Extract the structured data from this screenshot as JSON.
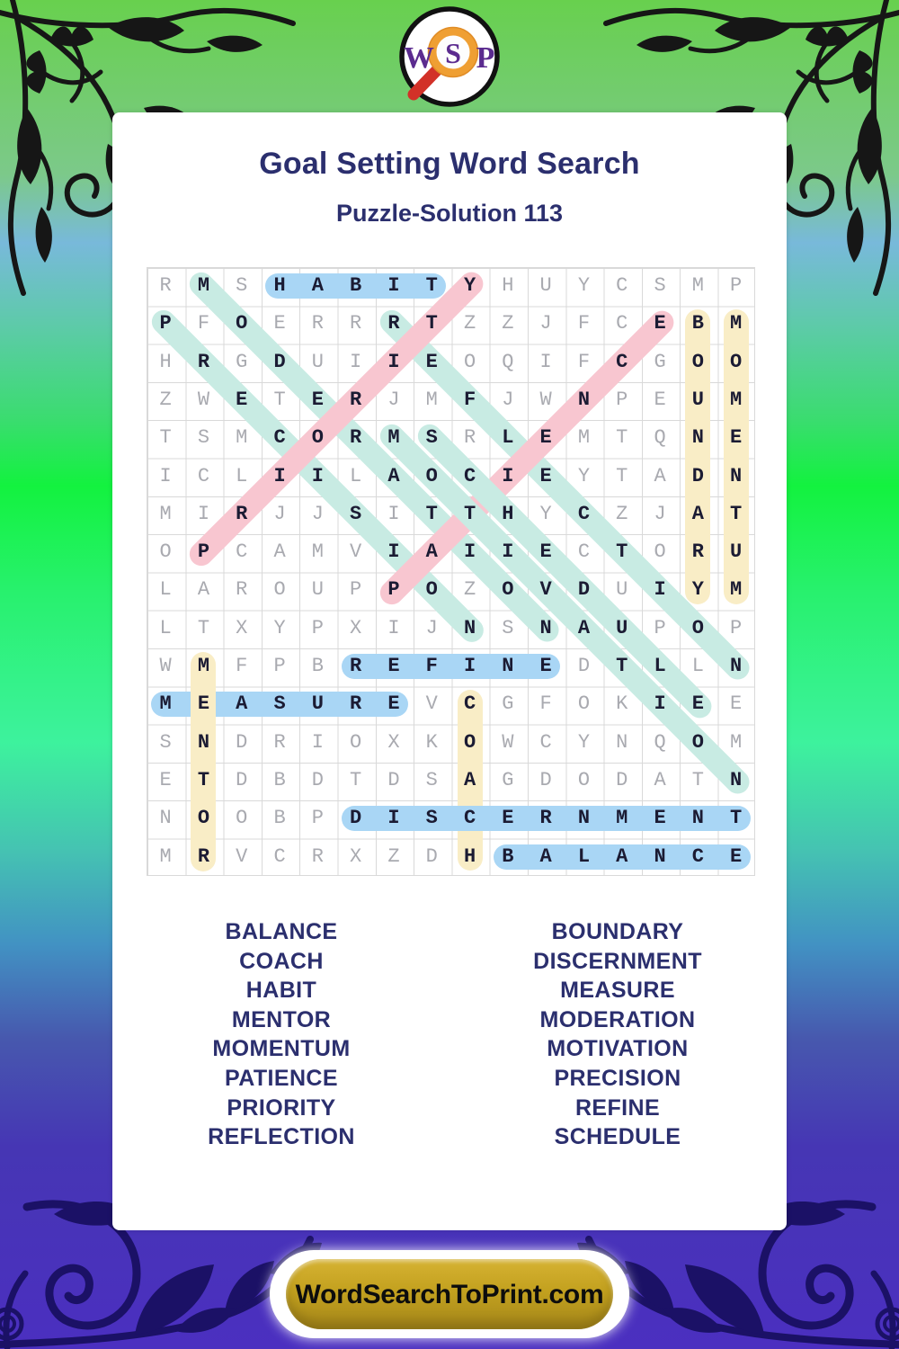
{
  "logo": {
    "letter_w": "W",
    "letter_s": "S",
    "letter_p": "P"
  },
  "header": {
    "title": "Goal Setting Word Search",
    "subtitle": "Puzzle-Solution 113"
  },
  "grid": {
    "size": 16,
    "rows": [
      "RMSHABITYHUYCSMP",
      "PFOERRRTZZJFCEBM",
      "HRGDUIIEOQIFCGOO",
      "ZWETERJMFJWNPEUM",
      "TSMCORMSRLEMTQNE",
      "ICLIILAOCIEYTADN",
      "MIRJJSITTHYCZJAT",
      "OPCAMVIAIIECTORU",
      "LAROUPPOZOVDUIYM",
      "LTXYPXIJNSNAUPOP",
      "WMFPBREFINEDTLLN",
      "MEASUREVCGFOKIEE",
      "SNDRIOXKOWCYNQOM",
      "ETDBDTDSAGDODATN",
      "NOOBPDISCERNMENT",
      "MRVCRXZDHBALANCE"
    ]
  },
  "solutions": [
    {
      "word": "HABIT",
      "color": "blue",
      "r1": 1,
      "c1": 4,
      "r2": 1,
      "c2": 8
    },
    {
      "word": "MODERATION",
      "color": "teal",
      "r1": 1,
      "c1": 2,
      "r2": 10,
      "c2": 11
    },
    {
      "word": "PRECISION",
      "color": "teal",
      "r1": 2,
      "c1": 1,
      "r2": 10,
      "c2": 9
    },
    {
      "word": "REFLECTION",
      "color": "teal",
      "r1": 2,
      "c1": 7,
      "r2": 11,
      "c2": 16
    },
    {
      "word": "PRIORITY",
      "color": "pink",
      "r1": 8,
      "c1": 2,
      "r2": 1,
      "c2": 9
    },
    {
      "word": "PATIENCE",
      "color": "pink",
      "r1": 9,
      "c1": 7,
      "r2": 2,
      "c2": 14
    },
    {
      "word": "BOUNDARY",
      "color": "yellow",
      "r1": 2,
      "c1": 15,
      "r2": 9,
      "c2": 15
    },
    {
      "word": "MOMENTUM",
      "color": "yellow",
      "r1": 2,
      "c1": 16,
      "r2": 9,
      "c2": 16
    },
    {
      "word": "MOTIVATION",
      "color": "teal",
      "r1": 5,
      "c1": 7,
      "r2": 14,
      "c2": 16
    },
    {
      "word": "SCHEDULE",
      "color": "teal",
      "r1": 5,
      "c1": 8,
      "r2": 12,
      "c2": 15
    },
    {
      "word": "REFINE",
      "color": "blue",
      "r1": 11,
      "c1": 6,
      "r2": 11,
      "c2": 11
    },
    {
      "word": "MEASURE",
      "color": "blue",
      "r1": 12,
      "c1": 1,
      "r2": 12,
      "c2": 7
    },
    {
      "word": "MENTOR",
      "color": "yellow",
      "r1": 11,
      "c1": 2,
      "r2": 16,
      "c2": 2
    },
    {
      "word": "COACH",
      "color": "yellow",
      "r1": 12,
      "c1": 9,
      "r2": 16,
      "c2": 9
    },
    {
      "word": "DISCERNMENT",
      "color": "blue",
      "r1": 15,
      "c1": 6,
      "r2": 15,
      "c2": 16
    },
    {
      "word": "BALANCE",
      "color": "blue",
      "r1": 16,
      "c1": 10,
      "r2": 16,
      "c2": 16
    }
  ],
  "word_list": {
    "left": [
      "BALANCE",
      "COACH",
      "HABIT",
      "MENTOR",
      "MOMENTUM",
      "PATIENCE",
      "PRIORITY",
      "REFLECTION"
    ],
    "right": [
      "BOUNDARY",
      "DISCERNMENT",
      "MEASURE",
      "MODERATION",
      "MOTIVATION",
      "PRECISION",
      "REFINE",
      "SCHEDULE"
    ]
  },
  "footer": {
    "button_label": "WordSearchToPrint.com"
  },
  "colors": {
    "highlight": {
      "blue": "#a9d6f5",
      "yellow": "#f9edc6",
      "teal": "#c8ebe3",
      "pink": "#f8c6d0"
    },
    "solution_letter": "#1b1b33",
    "filler_letter": "#a9aab0",
    "grid_line": "#d9d9d9",
    "title_navy": "#2b2f6e",
    "button_gold": "#c3a11f",
    "background_green": "#68d04e",
    "background_purple": "#4634b6"
  }
}
